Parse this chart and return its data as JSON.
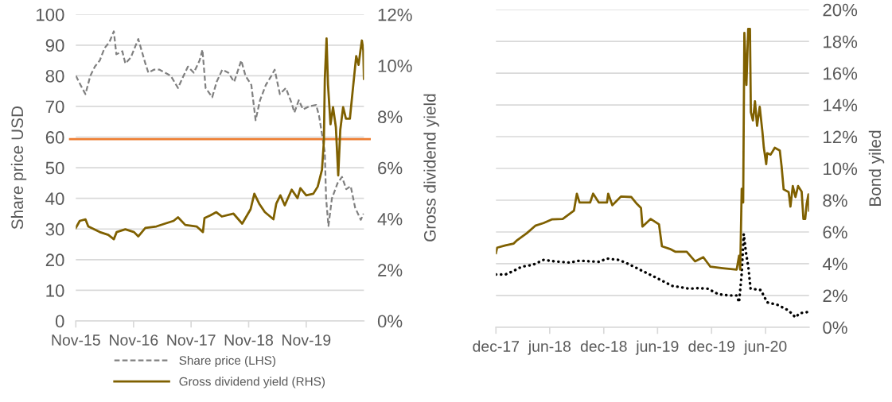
{
  "chart_data": [
    {
      "type": "line",
      "ylabel": "Share price USD",
      "y2label": "Gross dividend yield",
      "xlim": [
        "2015-11-01",
        "2020-11-01"
      ],
      "xticks": [
        {
          "value": "2015-11-01",
          "label": "Nov-15"
        },
        {
          "value": "2016-11-01",
          "label": "Nov-16"
        },
        {
          "value": "2017-11-01",
          "label": "Nov-17"
        },
        {
          "value": "2018-11-01",
          "label": "Nov-18"
        },
        {
          "value": "2019-11-01",
          "label": "Nov-19"
        }
      ],
      "ylim": [
        0,
        100
      ],
      "yticks": [
        0,
        10,
        20,
        30,
        40,
        50,
        60,
        70,
        80,
        90,
        100
      ],
      "y2lim": [
        0,
        12
      ],
      "y2ticks": [
        {
          "value": 0,
          "label": "0%"
        },
        {
          "value": 2,
          "label": "2%"
        },
        {
          "value": 4,
          "label": "4%"
        },
        {
          "value": 6,
          "label": "6%"
        },
        {
          "value": 8,
          "label": "8%"
        },
        {
          "value": 10,
          "label": "10%"
        },
        {
          "value": 12,
          "label": "12%"
        }
      ],
      "grid": "y",
      "legend": "bottom",
      "ref_lines": [
        {
          "axis": "y",
          "value": 59.3,
          "color": "#ed7d31"
        }
      ],
      "series": [
        {
          "name": "Share price (LHS)",
          "color": "#808080",
          "line_style": "dashed",
          "x": [
            "2015-11-01",
            "2015-12-01",
            "2016-01-01",
            "2016-02-01",
            "2016-03-01",
            "2016-04-01",
            "2016-05-01",
            "2016-06-01",
            "2016-06-29",
            "2016-07-15",
            "2016-08-22",
            "2016-09-10",
            "2016-10-15",
            "2016-12-01",
            "2017-01-15",
            "2017-02-03",
            "2017-03-10",
            "2017-04-15",
            "2017-05-20",
            "2017-06-25",
            "2017-08-10",
            "2017-09-05",
            "2017-10-12",
            "2017-11-18",
            "2017-12-25",
            "2018-01-12",
            "2018-02-01",
            "2018-03-15",
            "2018-04-12",
            "2018-05-18",
            "2018-06-25",
            "2018-08-01",
            "2018-09-15",
            "2018-10-12",
            "2018-11-18",
            "2018-12-15",
            "2019-01-12",
            "2019-02-18",
            "2019-03-25",
            "2019-04-15",
            "2019-05-18",
            "2019-06-25",
            "2019-08-01",
            "2019-08-18",
            "2019-09-15",
            "2019-10-12",
            "2019-11-18",
            "2020-01-03",
            "2020-01-21",
            "2020-02-09",
            "2020-02-27",
            "2020-03-06",
            "2020-03-21",
            "2020-04-12",
            "2020-05-18",
            "2020-06-15",
            "2020-07-12",
            "2020-08-09",
            "2020-09-06",
            "2020-10-12",
            "2020-10-30"
          ],
          "values": [
            80,
            77,
            74,
            80,
            83,
            85,
            89,
            91,
            94.5,
            87,
            88,
            84,
            86,
            92,
            84,
            81,
            82,
            82,
            81,
            80,
            76,
            79,
            83,
            81,
            85,
            88.5,
            76,
            73,
            78,
            82,
            81,
            78,
            85,
            80,
            77,
            65.5,
            72,
            77,
            80,
            82,
            74,
            76,
            71,
            68,
            72,
            69,
            70,
            70.5,
            67,
            61,
            55,
            40,
            31,
            40,
            45,
            47,
            43,
            44,
            37,
            33,
            35
          ]
        },
        {
          "name": "Gross dividend yield (RHS)",
          "color": "#7f6000",
          "line_style": "solid",
          "axis": "y2",
          "x": [
            "2015-11-01",
            "2015-11-26",
            "2016-01-01",
            "2016-01-19",
            "2016-04-01",
            "2016-05-25",
            "2016-06-29",
            "2016-07-17",
            "2016-09-10",
            "2016-11-04",
            "2016-12-01",
            "2017-01-15",
            "2017-03-26",
            "2017-05-19",
            "2017-07-13",
            "2017-08-10",
            "2017-09-25",
            "2017-12-06",
            "2018-01-15",
            "2018-01-25",
            "2018-03-04",
            "2018-04-10",
            "2018-05-15",
            "2018-07-28",
            "2018-09-21",
            "2018-11-13",
            "2018-12-07",
            "2019-01-07",
            "2019-02-12",
            "2019-04-07",
            "2019-04-25",
            "2019-05-21",
            "2019-06-18",
            "2019-08-01",
            "2019-09-07",
            "2019-09-25",
            "2019-11-01",
            "2019-12-16",
            "2020-01-13",
            "2020-02-09",
            "2020-02-21",
            "2020-02-27",
            "2020-03-09",
            "2020-03-18",
            "2020-04-03",
            "2020-04-19",
            "2020-05-07",
            "2020-05-22",
            "2020-06-04",
            "2020-06-22",
            "2020-07-10",
            "2020-08-04",
            "2020-08-22",
            "2020-09-13",
            "2020-09-28",
            "2020-10-10",
            "2020-10-19",
            "2020-10-28",
            "2020-11-01"
          ],
          "values": [
            3.64,
            3.92,
            3.98,
            3.7,
            3.48,
            3.37,
            3.2,
            3.48,
            3.59,
            3.48,
            3.31,
            3.64,
            3.7,
            3.81,
            3.92,
            4.06,
            3.76,
            3.7,
            3.48,
            4.03,
            4.14,
            4.26,
            4.09,
            4.2,
            3.81,
            4.37,
            4.98,
            4.59,
            4.26,
            3.98,
            4.59,
            4.92,
            4.53,
            5.14,
            4.81,
            5.2,
            4.92,
            4.98,
            5.26,
            5.92,
            7.03,
            9.48,
            11.06,
            9.26,
            7.7,
            8.37,
            7.59,
            5.7,
            7.48,
            8.37,
            7.92,
            7.92,
            9.03,
            10.37,
            10.03,
            10.59,
            10.98,
            10.59,
            9.48
          ]
        }
      ]
    },
    {
      "type": "line",
      "y2label": "Bond yiled",
      "xlim": [
        "2017-12-01",
        "2020-10-26"
      ],
      "xticks": [
        {
          "value": "2017-12-01",
          "label": "dec-17"
        },
        {
          "value": "2018-06-01",
          "label": "jun-18"
        },
        {
          "value": "2018-12-01",
          "label": "dec-18"
        },
        {
          "value": "2019-06-01",
          "label": "jun-19"
        },
        {
          "value": "2019-12-01",
          "label": "dec-19"
        },
        {
          "value": "2020-06-01",
          "label": "jun-20"
        }
      ],
      "y2lim": [
        0,
        20
      ],
      "y2ticks": [
        {
          "value": 0,
          "label": "0%"
        },
        {
          "value": 2,
          "label": "2%"
        },
        {
          "value": 4,
          "label": "4%"
        },
        {
          "value": 6,
          "label": "6%"
        },
        {
          "value": 8,
          "label": "8%"
        },
        {
          "value": 10,
          "label": "10%"
        },
        {
          "value": 12,
          "label": "12%"
        },
        {
          "value": 14,
          "label": "14%"
        },
        {
          "value": 16,
          "label": "16%"
        },
        {
          "value": 18,
          "label": "18%"
        },
        {
          "value": 20,
          "label": "20%"
        }
      ],
      "grid": "y",
      "series": [
        {
          "color": "#000000",
          "line_style": "dotted",
          "axis": "y2",
          "x": [
            "2017-12-01",
            "2018-01-02",
            "2018-01-30",
            "2018-02-26",
            "2018-04-05",
            "2018-05-11",
            "2018-06-17",
            "2018-08-07",
            "2018-09-10",
            "2018-11-14",
            "2018-12-12",
            "2019-01-21",
            "2019-02-17",
            "2019-03-23",
            "2019-04-29",
            "2019-06-06",
            "2019-07-21",
            "2019-08-18",
            "2019-09-15",
            "2019-10-13",
            "2019-11-18",
            "2019-12-24",
            "2020-01-29",
            "2020-02-24",
            "2020-03-03",
            "2020-03-12",
            "2020-03-19",
            "2020-03-26",
            "2020-04-04",
            "2020-04-11",
            "2020-05-16",
            "2020-06-06",
            "2020-07-13",
            "2020-08-18",
            "2020-09-10",
            "2020-09-24",
            "2020-10-23"
          ],
          "values": [
            3.32,
            3.32,
            3.55,
            3.81,
            3.93,
            4.24,
            4.15,
            4.07,
            4.19,
            4.12,
            4.32,
            4.24,
            4.03,
            3.72,
            3.38,
            3.03,
            2.6,
            2.52,
            2.43,
            2.46,
            2.43,
            2.08,
            2.0,
            2.0,
            1.57,
            3.38,
            5.87,
            4.75,
            3.72,
            2.43,
            2.34,
            1.57,
            1.4,
            1.05,
            0.62,
            0.88,
            0.96
          ]
        },
        {
          "color": "#7f6000",
          "line_style": "solid",
          "axis": "y2",
          "x": [
            "2017-12-01",
            "2017-12-05",
            "2018-01-02",
            "2018-01-30",
            "2018-02-08",
            "2018-03-16",
            "2018-04-13",
            "2018-05-11",
            "2018-06-08",
            "2018-07-15",
            "2018-08-03",
            "2018-08-22",
            "2018-09-01",
            "2018-09-10",
            "2018-10-16",
            "2018-10-26",
            "2018-11-14",
            "2018-12-12",
            "2018-12-16",
            "2018-12-30",
            "2019-01-28",
            "2019-03-04",
            "2019-03-23",
            "2019-04-06",
            "2019-04-11",
            "2019-05-09",
            "2019-06-06",
            "2019-06-16",
            "2019-07-13",
            "2019-08-01",
            "2019-09-08",
            "2019-10-06",
            "2019-11-03",
            "2019-11-27",
            "2020-01-08",
            "2020-02-24",
            "2020-03-03",
            "2020-03-07",
            "2020-03-12",
            "2020-03-17",
            "2020-03-21",
            "2020-03-28",
            "2020-04-03",
            "2020-04-09",
            "2020-04-12",
            "2020-04-19",
            "2020-04-26",
            "2020-05-03",
            "2020-05-12",
            "2020-05-21",
            "2020-05-26",
            "2020-06-03",
            "2020-06-06",
            "2020-06-18",
            "2020-07-02",
            "2020-07-19",
            "2020-07-25",
            "2020-08-01",
            "2020-08-18",
            "2020-08-24",
            "2020-09-01",
            "2020-09-10",
            "2020-09-19",
            "2020-10-01",
            "2020-10-07",
            "2020-10-13",
            "2020-10-18",
            "2020-10-24",
            "2020-10-26"
          ],
          "values": [
            4.67,
            5.01,
            5.15,
            5.27,
            5.44,
            5.93,
            6.39,
            6.56,
            6.79,
            6.82,
            7.08,
            7.34,
            8.41,
            7.86,
            7.86,
            8.41,
            7.86,
            7.86,
            8.41,
            7.68,
            8.23,
            8.2,
            7.77,
            7.51,
            6.34,
            6.82,
            6.48,
            5.1,
            4.93,
            4.75,
            4.75,
            4.15,
            4.41,
            3.81,
            3.72,
            3.63,
            4.5,
            3.63,
            8.72,
            7.86,
            18.54,
            15.26,
            18.79,
            18.79,
            13.54,
            13.02,
            14.23,
            12.68,
            13.88,
            12.33,
            11.3,
            10.27,
            10.96,
            10.87,
            11.3,
            11.13,
            10.14,
            8.68,
            8.51,
            7.6,
            8.89,
            8.2,
            8.89,
            8.54,
            6.82,
            6.82,
            7.77,
            8.37,
            7.34
          ]
        }
      ]
    }
  ]
}
